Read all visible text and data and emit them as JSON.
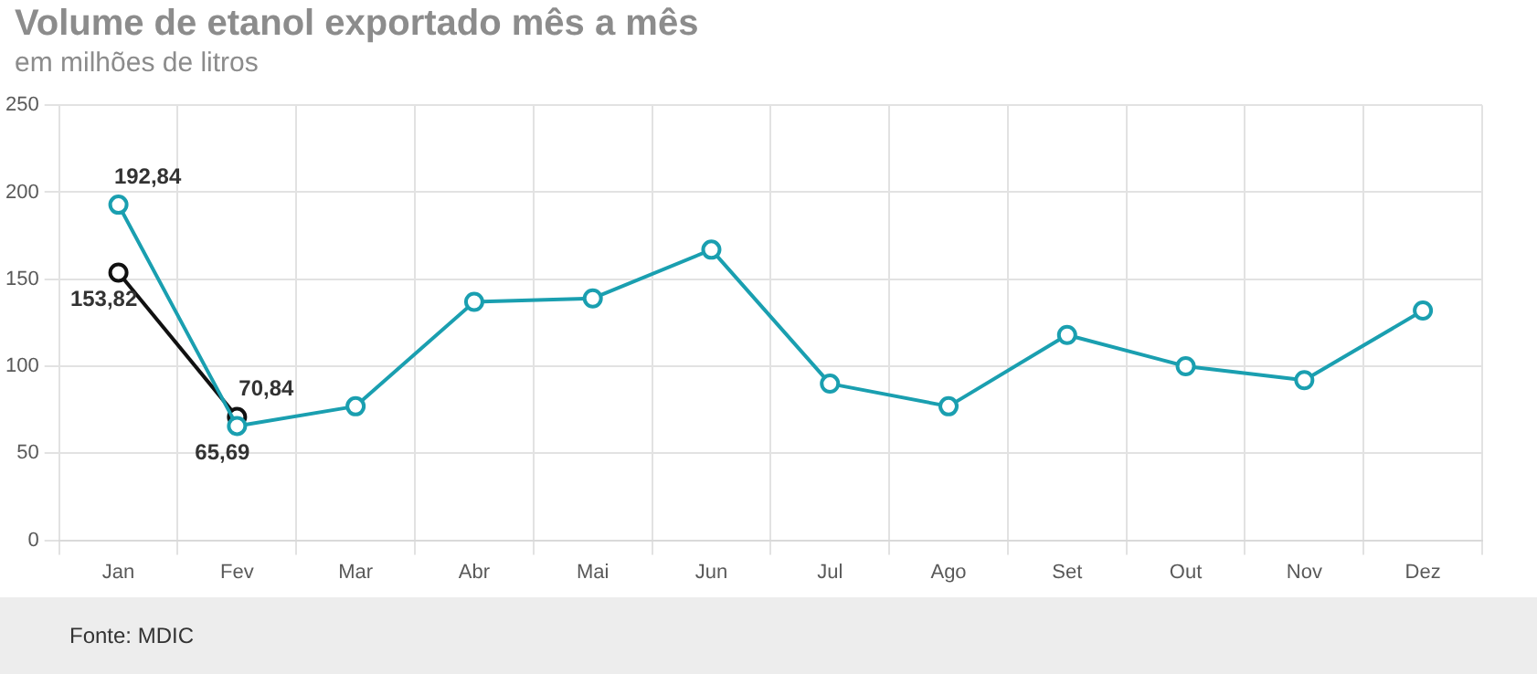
{
  "chart_data": {
    "type": "line",
    "title": "Volume de etanol exportado mês a mês",
    "subtitle": "em milhões de litros",
    "categories": [
      "Jan",
      "Fev",
      "Mar",
      "Abr",
      "Mai",
      "Jun",
      "Jul",
      "Ago",
      "Set",
      "Out",
      "Nov",
      "Dez"
    ],
    "series": [
      {
        "color": "#1a9fb0",
        "values": [
          192.84,
          65.69,
          77,
          137,
          139,
          167,
          90,
          77,
          118,
          100,
          92,
          132
        ],
        "value_labels": [
          "192,84",
          "65,69",
          null,
          null,
          null,
          null,
          null,
          null,
          null,
          null,
          null,
          null
        ]
      },
      {
        "color": "#111111",
        "values": [
          153.82,
          70.84,
          null,
          null,
          null,
          null,
          null,
          null,
          null,
          null,
          null,
          null
        ],
        "value_labels": [
          "153,82",
          "70,84",
          null,
          null,
          null,
          null,
          null,
          null,
          null,
          null,
          null,
          null
        ]
      }
    ],
    "ylim": [
      0,
      250
    ],
    "yticks": [
      0,
      50,
      100,
      150,
      200,
      250
    ],
    "grid": true,
    "marker": "circle",
    "line_style": "solid",
    "legend": false,
    "annotations": [
      "Fonte: MDIC"
    ]
  }
}
